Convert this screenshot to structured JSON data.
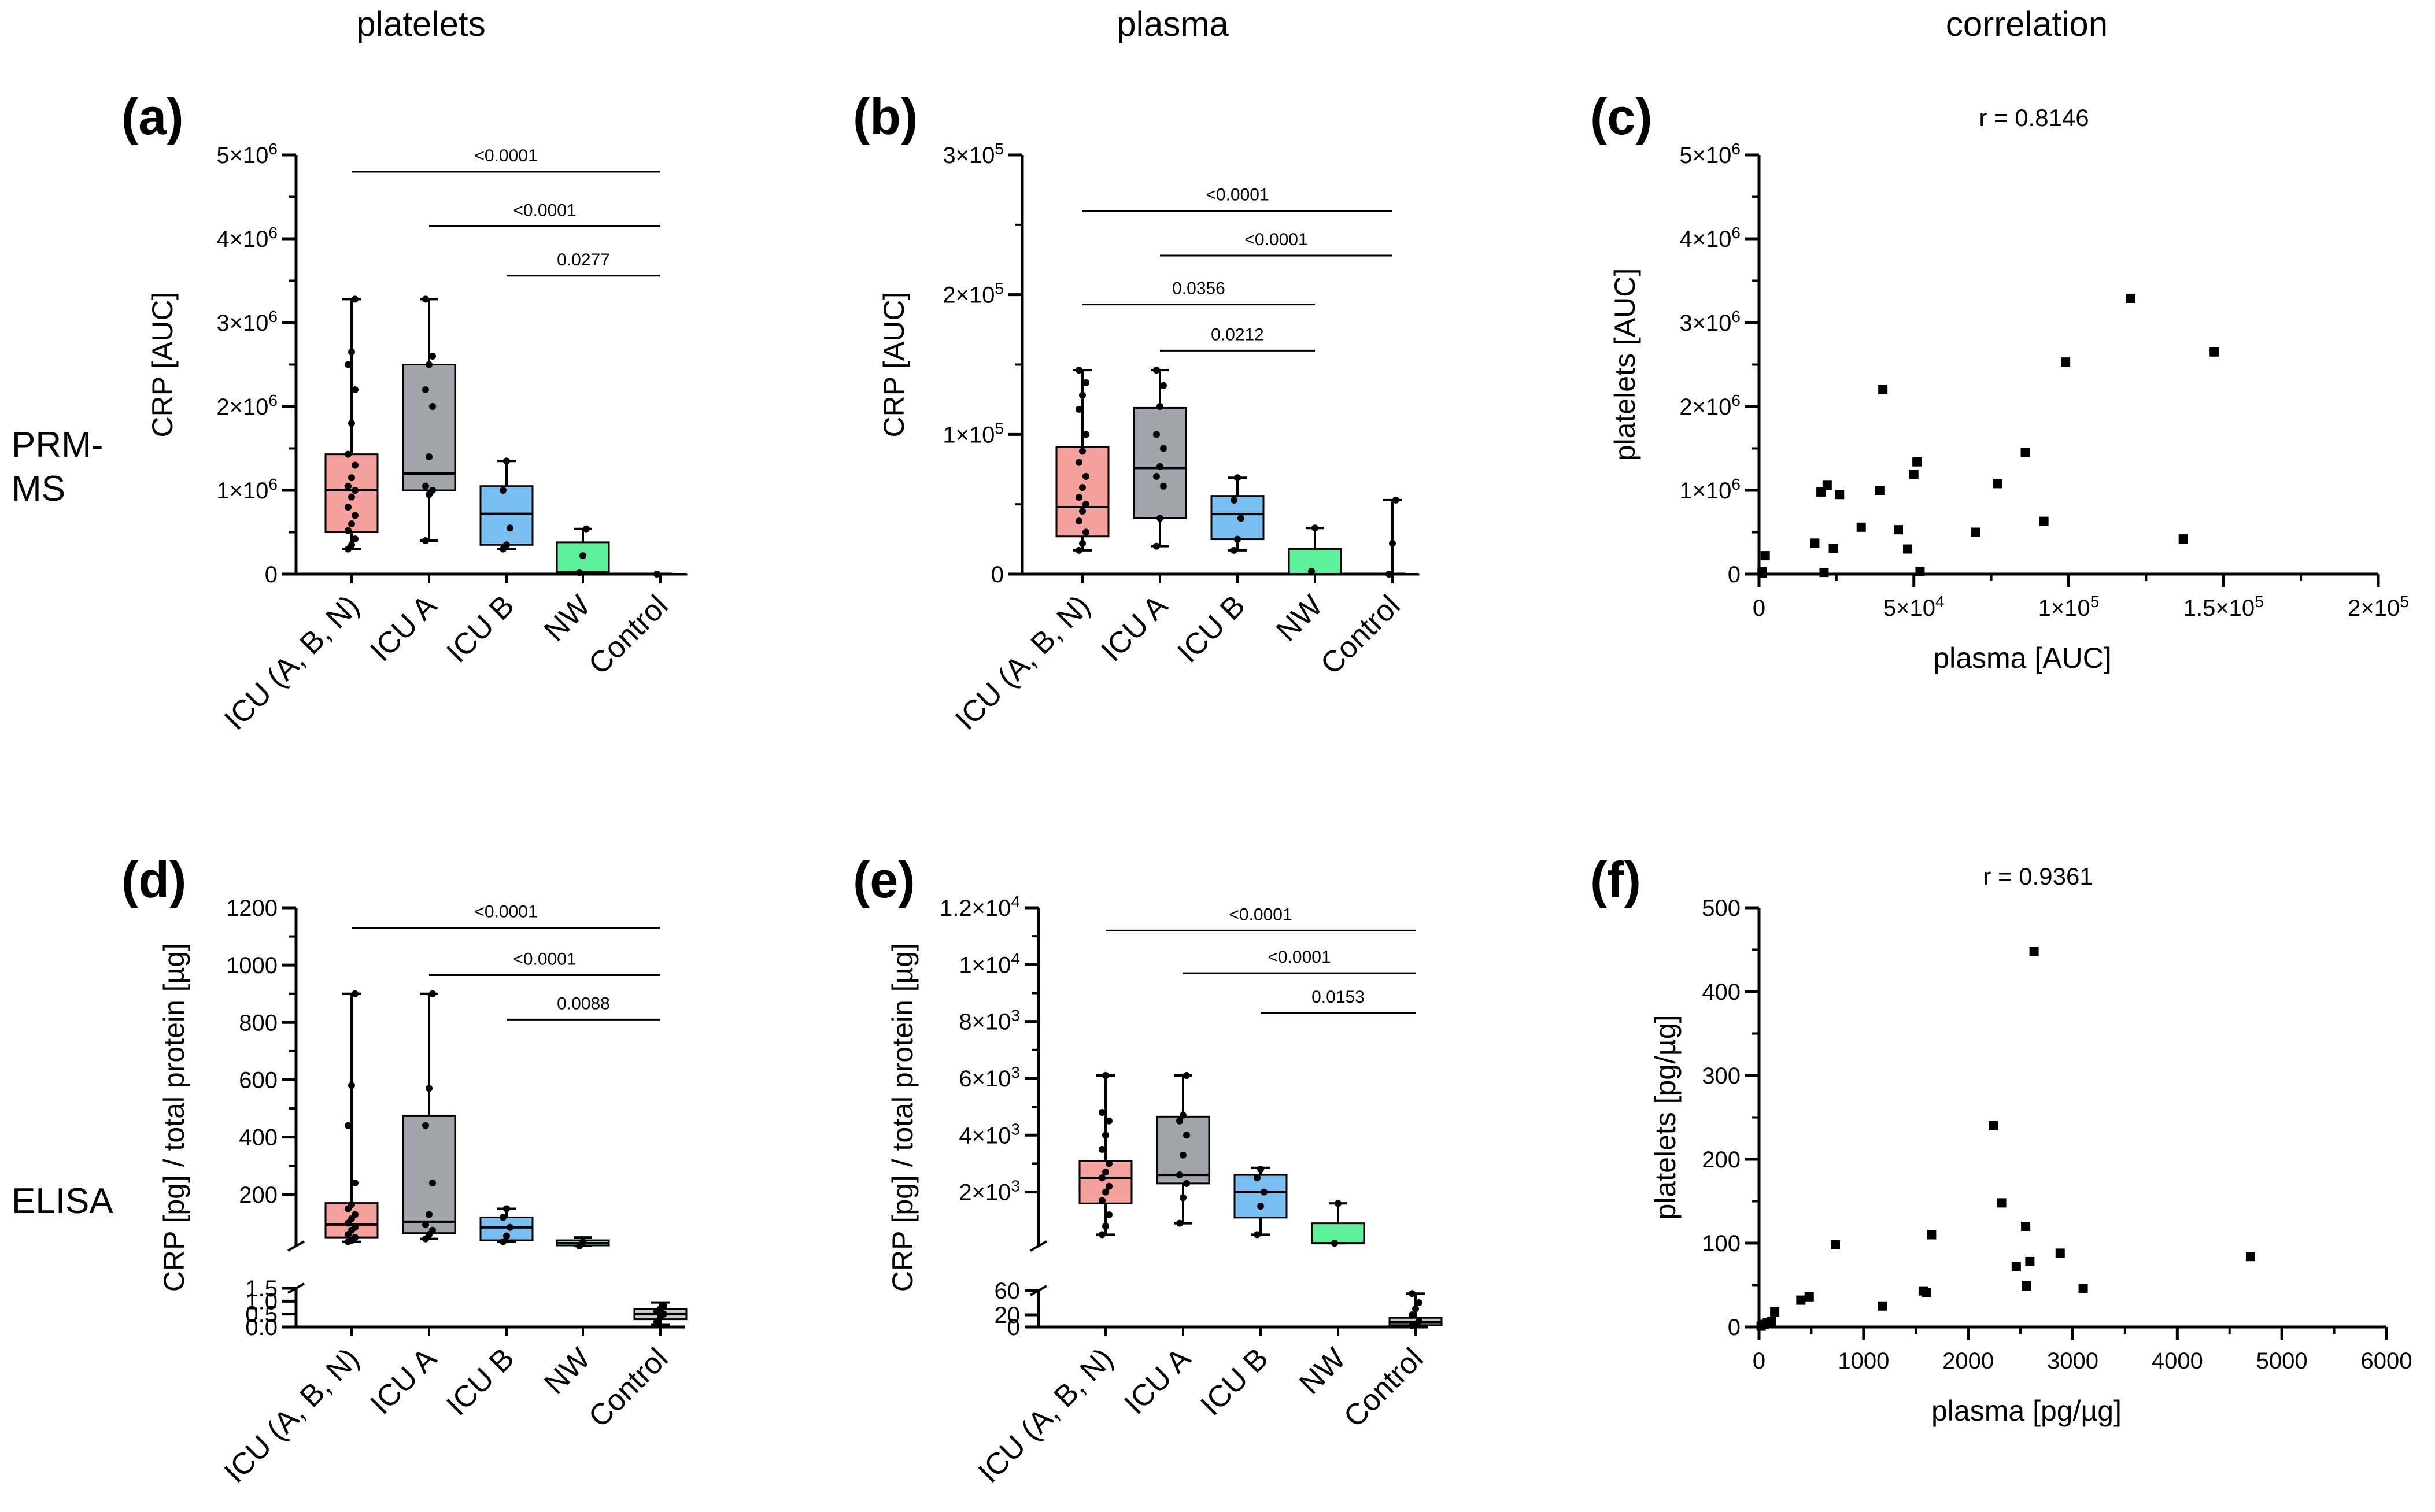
{
  "column_headers": [
    "platelets",
    "plasma",
    "correlation"
  ],
  "row_labels": [
    "PRM-\nMS",
    "ELISA"
  ],
  "colors": {
    "ICU (A, B, N)": "#f4a09c",
    "ICU A": "#a3a3ab",
    "ICU B": "#79bff2",
    "NW": "#5df09a",
    "Control": "#c8c8c8"
  },
  "chart_data": [
    {
      "panel": "(a)",
      "type": "box",
      "title": "",
      "ylabel": "CRP [AUC]",
      "xlabel": "",
      "categories": [
        "ICU (A, B, N)",
        "ICU A",
        "ICU B",
        "NW",
        "Control"
      ],
      "ylim": [
        0,
        5000000
      ],
      "yticks": [
        {
          "v": 0,
          "label": "0"
        },
        {
          "v": 1000000,
          "label": "1×10^6"
        },
        {
          "v": 2000000,
          "label": "2×10^6"
        },
        {
          "v": 3000000,
          "label": "3×10^6"
        },
        {
          "v": 4000000,
          "label": "4×10^6"
        },
        {
          "v": 5000000,
          "label": "5×10^6"
        }
      ],
      "boxes": [
        {
          "min": 300000,
          "q1": 500000,
          "median": 1000000,
          "q3": 1430000,
          "max": 3280000,
          "points": [
            300000,
            350000,
            420000,
            520000,
            600000,
            700000,
            800000,
            920000,
            1000000,
            1050000,
            1150000,
            1300000,
            1430000,
            1800000,
            2200000,
            2500000,
            2650000,
            3280000
          ]
        },
        {
          "min": 400000,
          "q1": 1000000,
          "median": 1200000,
          "q3": 2500000,
          "max": 3280000,
          "points": [
            400000,
            950000,
            1000000,
            1050000,
            1400000,
            2000000,
            2200000,
            2500000,
            2600000,
            3280000
          ]
        },
        {
          "min": 300000,
          "q1": 350000,
          "median": 720000,
          "q3": 1050000,
          "max": 1350000,
          "points": [
            300000,
            350000,
            550000,
            1000000,
            1350000
          ]
        },
        {
          "min": 0,
          "q1": 20000,
          "median": 20000,
          "q3": 380000,
          "max": 540000,
          "points": [
            20000,
            220000,
            540000
          ]
        },
        {
          "min": 0,
          "q1": 0,
          "median": 0,
          "q3": 0,
          "max": 0,
          "points": [
            0
          ]
        }
      ],
      "comparisons": [
        {
          "from": "ICU (A, B, N)",
          "to": "Control",
          "label": "<0.0001",
          "y": 4800000
        },
        {
          "from": "ICU A",
          "to": "Control",
          "label": "<0.0001",
          "y": 4150000
        },
        {
          "from": "ICU B",
          "to": "Control",
          "label": "0.0277",
          "y": 3560000
        }
      ]
    },
    {
      "panel": "(b)",
      "type": "box",
      "title": "",
      "ylabel": "CRP [AUC]",
      "xlabel": "",
      "categories": [
        "ICU (A, B, N)",
        "ICU A",
        "ICU B",
        "NW",
        "Control"
      ],
      "ylim": [
        0,
        300000
      ],
      "yticks": [
        {
          "v": 0,
          "label": "0"
        },
        {
          "v": 100000,
          "label": "1×10^5"
        },
        {
          "v": 200000,
          "label": "2×10^5"
        },
        {
          "v": 300000,
          "label": "3×10^5"
        }
      ],
      "boxes": [
        {
          "min": 17000,
          "q1": 27000,
          "median": 48000,
          "q3": 91000,
          "max": 146000,
          "points": [
            17000,
            22000,
            30000,
            38000,
            45000,
            50000,
            55000,
            62000,
            70000,
            80000,
            88000,
            100000,
            118000,
            128000,
            137000,
            146000
          ]
        },
        {
          "min": 20000,
          "q1": 40000,
          "median": 76000,
          "q3": 119000,
          "max": 146000,
          "points": [
            20000,
            40000,
            63000,
            70000,
            77000,
            90000,
            100000,
            120000,
            135000,
            146000
          ]
        },
        {
          "min": 17000,
          "q1": 25000,
          "median": 43000,
          "q3": 56000,
          "max": 69000,
          "points": [
            17000,
            25000,
            40000,
            53000,
            69000
          ]
        },
        {
          "min": 0,
          "q1": 0,
          "median": 0,
          "q3": 18000,
          "max": 33000,
          "points": [
            2000,
            33000
          ]
        },
        {
          "min": 0,
          "q1": 0,
          "median": 0,
          "q3": 0,
          "max": 53000,
          "points": [
            0,
            22000,
            53000
          ]
        }
      ],
      "comparisons": [
        {
          "from": "ICU (A, B, N)",
          "to": "Control",
          "label": "<0.0001",
          "y": 260000
        },
        {
          "from": "ICU A",
          "to": "Control",
          "label": "<0.0001",
          "y": 228000
        },
        {
          "from": "ICU (A, B, N)",
          "to": "NW",
          "label": "0.0356",
          "y": 193000
        },
        {
          "from": "ICU A",
          "to": "NW",
          "label": "0.0212",
          "y": 160000
        }
      ]
    },
    {
      "panel": "(c)",
      "type": "scatter",
      "title": "r = 0.8146",
      "xlabel": "plasma [AUC]",
      "ylabel": "platelets [AUC]",
      "xlim": [
        0,
        200000
      ],
      "ylim": [
        0,
        5000000
      ],
      "xticks": [
        {
          "v": 0,
          "label": "0"
        },
        {
          "v": 50000,
          "label": "5×10^4"
        },
        {
          "v": 100000,
          "label": "1×10^5"
        },
        {
          "v": 150000,
          "label": "1.5×10^5"
        },
        {
          "v": 200000,
          "label": "2×10^5"
        }
      ],
      "yticks": [
        {
          "v": 0,
          "label": "0"
        },
        {
          "v": 1000000,
          "label": "1×10^6"
        },
        {
          "v": 2000000,
          "label": "2×10^6"
        },
        {
          "v": 3000000,
          "label": "3×10^6"
        },
        {
          "v": 4000000,
          "label": "4×10^6"
        },
        {
          "v": 5000000,
          "label": "5×10^6"
        }
      ],
      "x": [
        1000,
        1000,
        2000,
        18000,
        20000,
        21000,
        22000,
        24000,
        26000,
        33000,
        39000,
        40000,
        45000,
        48000,
        50000,
        51000,
        52000,
        70000,
        77000,
        86000,
        92000,
        99000,
        120000,
        137000,
        147000
      ],
      "y": [
        30000,
        10000,
        220000,
        370000,
        980000,
        20000,
        1060000,
        310000,
        950000,
        560000,
        1000000,
        2200000,
        530000,
        300000,
        1190000,
        1340000,
        30000,
        500000,
        1080000,
        1450000,
        630000,
        2530000,
        3290000,
        420000,
        2650000
      ]
    },
    {
      "panel": "(d)",
      "type": "box",
      "title": "",
      "ylabel": "CRP [pg] / total protein [µg]",
      "xlabel": "",
      "categories": [
        "ICU (A, B, N)",
        "ICU A",
        "ICU B",
        "NW",
        "Control"
      ],
      "ylim_upper": [
        20,
        1200
      ],
      "ylim_lower": [
        0,
        1.5
      ],
      "yticks_upper": [
        {
          "v": 200,
          "label": "200"
        },
        {
          "v": 400,
          "label": "400"
        },
        {
          "v": 600,
          "label": "600"
        },
        {
          "v": 800,
          "label": "800"
        },
        {
          "v": 1000,
          "label": "1000"
        },
        {
          "v": 1200,
          "label": "1200"
        }
      ],
      "yticks_lower": [
        {
          "v": 0,
          "label": "0.0"
        },
        {
          "v": 0.5,
          "label": "0.5"
        },
        {
          "v": 1.0,
          "label": "1.0"
        },
        {
          "v": 1.5,
          "label": "1.5"
        }
      ],
      "boxes": [
        {
          "min": 35,
          "q1": 50,
          "median": 95,
          "q3": 170,
          "max": 900,
          "points": [
            35,
            40,
            50,
            60,
            75,
            85,
            100,
            115,
            130,
            150,
            165,
            240,
            440,
            580,
            900
          ]
        },
        {
          "min": 45,
          "q1": 65,
          "median": 105,
          "q3": 475,
          "max": 900,
          "points": [
            45,
            60,
            75,
            95,
            130,
            240,
            440,
            570,
            900
          ]
        },
        {
          "min": 35,
          "q1": 40,
          "median": 85,
          "q3": 120,
          "max": 150,
          "points": [
            35,
            55,
            85,
            120,
            150
          ]
        },
        {
          "min": 20,
          "q1": 22,
          "median": 30,
          "q3": 40,
          "max": 50,
          "points": [
            20,
            35
          ]
        },
        {
          "min": 0.1,
          "q1": 0.3,
          "median": 0.5,
          "q3": 0.7,
          "max": 0.95,
          "points": [
            0.2,
            0.4,
            0.5,
            0.6,
            0.7,
            0.8
          ]
        }
      ],
      "comparisons": [
        {
          "from": "ICU (A, B, N)",
          "to": "Control",
          "label": "<0.0001",
          "y": 1130
        },
        {
          "from": "ICU A",
          "to": "Control",
          "label": "<0.0001",
          "y": 965
        },
        {
          "from": "ICU B",
          "to": "Control",
          "label": "0.0088",
          "y": 810
        }
      ]
    },
    {
      "panel": "(e)",
      "type": "box",
      "title": "",
      "ylabel": "CRP [pg] / total protein [µg]",
      "xlabel": "",
      "categories": [
        "ICU (A, B, N)",
        "ICU A",
        "ICU B",
        "NW",
        "Control"
      ],
      "ylim_upper": [
        100,
        12000
      ],
      "ylim_lower": [
        0,
        60
      ],
      "yticks_upper": [
        {
          "v": 2000,
          "label": "2×10^3"
        },
        {
          "v": 4000,
          "label": "4×10^3"
        },
        {
          "v": 6000,
          "label": "6×10^3"
        },
        {
          "v": 8000,
          "label": "8×10^3"
        },
        {
          "v": 10000,
          "label": "1×10^4"
        },
        {
          "v": 12000,
          "label": "1.2×10^4"
        }
      ],
      "yticks_lower": [
        {
          "v": 0,
          "label": "0"
        },
        {
          "v": 20,
          "label": "20"
        },
        {
          "v": 60,
          "label": "60"
        }
      ],
      "boxes": [
        {
          "min": 500,
          "q1": 1600,
          "median": 2500,
          "q3": 3100,
          "max": 6100,
          "points": [
            500,
            800,
            1200,
            1700,
            2000,
            2200,
            2500,
            2700,
            3000,
            3500,
            4000,
            4500,
            4800,
            6100
          ]
        },
        {
          "min": 900,
          "q1": 2300,
          "median": 2600,
          "q3": 4650,
          "max": 6100,
          "points": [
            900,
            1800,
            2300,
            2600,
            3300,
            4000,
            4500,
            4700,
            6100
          ]
        },
        {
          "min": 500,
          "q1": 1100,
          "median": 2000,
          "q3": 2600,
          "max": 2850,
          "points": [
            500,
            1500,
            2000,
            2500,
            2800
          ]
        },
        {
          "min": 200,
          "q1": 200,
          "median": 200,
          "q3": 900,
          "max": 1600,
          "points": [
            200,
            1600
          ]
        },
        {
          "min": 0,
          "q1": 3,
          "median": 8,
          "q3": 15,
          "max": 55,
          "points": [
            2,
            5,
            10,
            20,
            30,
            40,
            55
          ]
        }
      ],
      "comparisons": [
        {
          "from": "ICU (A, B, N)",
          "to": "Control",
          "label": "<0.0001",
          "y": 11200
        },
        {
          "from": "ICU A",
          "to": "Control",
          "label": "<0.0001",
          "y": 9700
        },
        {
          "from": "ICU B",
          "to": "Control",
          "label": "0.0153",
          "y": 8300
        }
      ]
    },
    {
      "panel": "(f)",
      "type": "scatter",
      "title": "r = 0.9361",
      "xlabel": "plasma [pg/µg]",
      "ylabel": "platelets [pg/µg]",
      "xlim": [
        0,
        6000
      ],
      "ylim": [
        0,
        500
      ],
      "xticks": [
        {
          "v": 0,
          "label": "0"
        },
        {
          "v": 1000,
          "label": "1000"
        },
        {
          "v": 2000,
          "label": "2000"
        },
        {
          "v": 3000,
          "label": "3000"
        },
        {
          "v": 4000,
          "label": "4000"
        },
        {
          "v": 5000,
          "label": "5000"
        },
        {
          "v": 6000,
          "label": "6000"
        }
      ],
      "yticks": [
        {
          "v": 0,
          "label": "0"
        },
        {
          "v": 100,
          "label": "100"
        },
        {
          "v": 200,
          "label": "200"
        },
        {
          "v": 300,
          "label": "300"
        },
        {
          "v": 400,
          "label": "400"
        },
        {
          "v": 500,
          "label": "500"
        }
      ],
      "x": [
        20,
        50,
        80,
        120,
        150,
        400,
        480,
        730,
        1180,
        1570,
        1600,
        1650,
        2240,
        2320,
        2460,
        2550,
        2560,
        2590,
        2630,
        2880,
        3100,
        4700
      ],
      "y": [
        1,
        3,
        5,
        7,
        18,
        32,
        36,
        98,
        25,
        43,
        41,
        110,
        240,
        148,
        72,
        120,
        49,
        78,
        448,
        88,
        46,
        84
      ]
    }
  ]
}
